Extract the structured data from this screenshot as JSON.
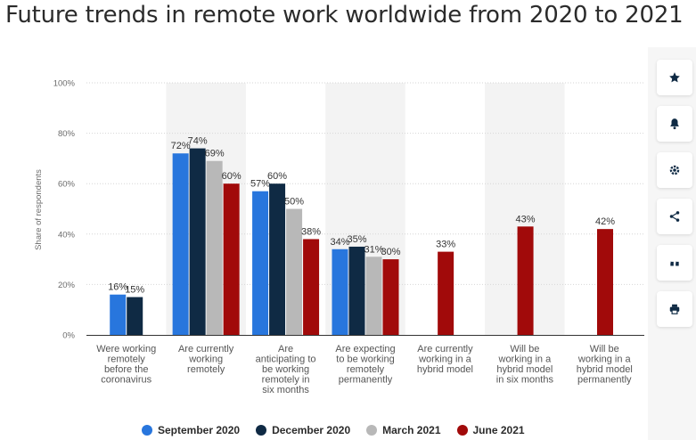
{
  "page": {
    "title": "Future trends in remote work worldwide from 2020 to 2021"
  },
  "toolbar": {
    "buttons": [
      {
        "name": "favorite",
        "icon": "star-icon"
      },
      {
        "name": "notification",
        "icon": "bell-icon"
      },
      {
        "name": "settings",
        "icon": "gear-icon"
      },
      {
        "name": "share",
        "icon": "share-icon"
      },
      {
        "name": "cite",
        "icon": "quote-icon"
      },
      {
        "name": "print",
        "icon": "print-icon"
      }
    ]
  },
  "colors": {
    "September 2020": "#2876dd",
    "December 2020": "#0f2a44",
    "March 2021": "#b8b8b8",
    "June 2021": "#a10a0a"
  },
  "chart_data": {
    "type": "bar",
    "ylabel": "Share of respondents",
    "ylim": [
      0,
      100
    ],
    "yticks": [
      "0%",
      "20%",
      "40%",
      "60%",
      "80%",
      "100%"
    ],
    "grid": true,
    "legend_position": "bottom",
    "categories": [
      [
        "Were working",
        "remotely",
        "before the",
        "coronavirus"
      ],
      [
        "Are currently",
        "working",
        "remotely"
      ],
      [
        "Are",
        "anticipating to",
        "be working",
        "remotely in",
        "six months"
      ],
      [
        "Are expecting",
        "to be working",
        "remotely",
        "permanently"
      ],
      [
        "Are currently",
        "working in a",
        "hybrid model"
      ],
      [
        "Will be",
        "working in a",
        "hybrid model",
        "in six months"
      ],
      [
        "Will be",
        "working in a",
        "hybrid model",
        "permanently"
      ]
    ],
    "series": [
      {
        "name": "September 2020",
        "values": [
          16,
          72,
          57,
          34,
          null,
          null,
          null
        ]
      },
      {
        "name": "December 2020",
        "values": [
          15,
          74,
          60,
          35,
          null,
          null,
          null
        ]
      },
      {
        "name": "March 2021",
        "values": [
          null,
          69,
          50,
          31,
          null,
          null,
          null
        ]
      },
      {
        "name": "June 2021",
        "values": [
          null,
          60,
          38,
          30,
          33,
          43,
          42
        ]
      }
    ],
    "value_suffix": "%"
  }
}
